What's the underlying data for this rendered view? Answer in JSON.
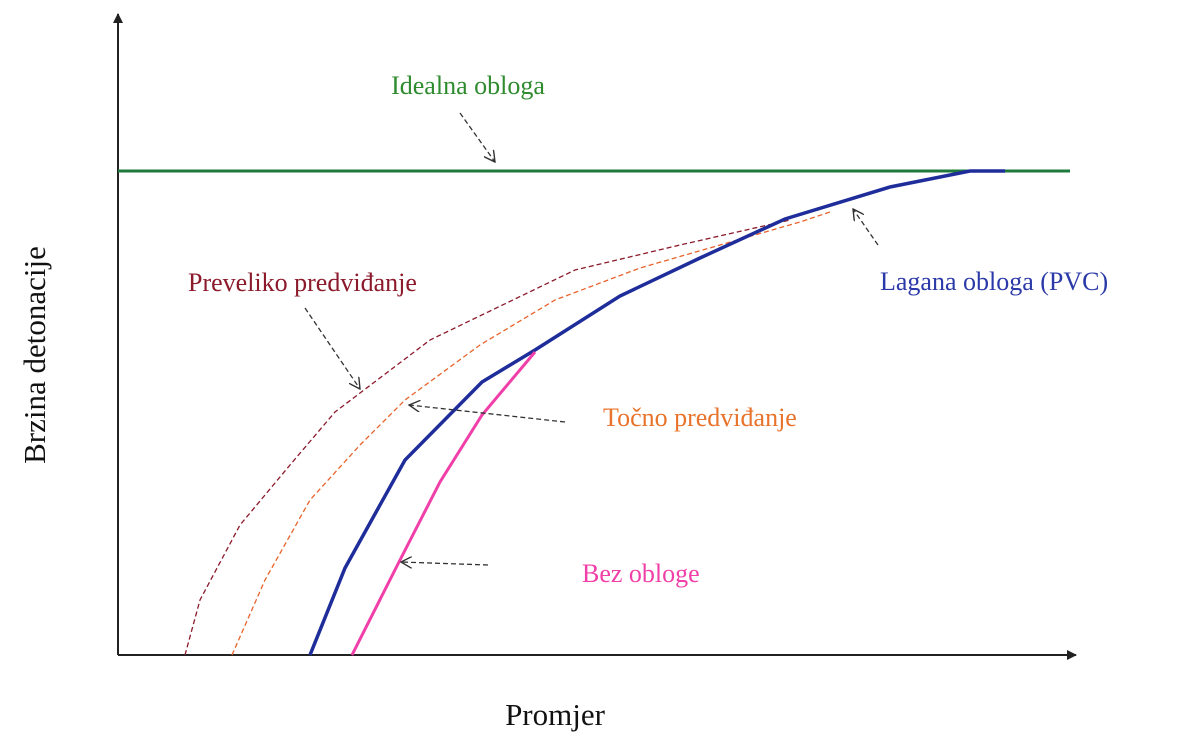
{
  "axes": {
    "x_label": "Promjer",
    "y_label": "Brzina detonacije"
  },
  "annotations": [
    {
      "label": "Idealna obloga"
    },
    {
      "label": "Lagana obloga (PVC)"
    },
    {
      "label": "Preveliko predviđanje"
    },
    {
      "label": "Točno predviđanje"
    },
    {
      "label": "Bez obloge"
    }
  ]
}
